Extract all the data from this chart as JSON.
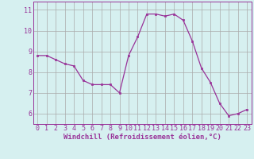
{
  "x": [
    0,
    1,
    2,
    3,
    4,
    5,
    6,
    7,
    8,
    9,
    10,
    11,
    12,
    13,
    14,
    15,
    16,
    17,
    18,
    19,
    20,
    21,
    22,
    23
  ],
  "y": [
    8.8,
    8.8,
    8.6,
    8.4,
    8.3,
    7.6,
    7.4,
    7.4,
    7.4,
    7.0,
    8.8,
    9.7,
    10.8,
    10.8,
    10.7,
    10.8,
    10.5,
    9.5,
    8.2,
    7.5,
    6.5,
    5.9,
    6.0,
    6.2
  ],
  "line_color": "#993399",
  "marker": "s",
  "marker_size": 2.0,
  "bg_color": "#d6f0f0",
  "grid_color": "#aaaaaa",
  "xlabel": "Windchill (Refroidissement éolien,°C)",
  "xlabel_fontsize": 6.5,
  "ylabel_ticks": [
    6,
    7,
    8,
    9,
    10,
    11
  ],
  "xtick_labels": [
    "0",
    "1",
    "2",
    "3",
    "4",
    "5",
    "6",
    "7",
    "8",
    "9",
    "10",
    "11",
    "12",
    "13",
    "14",
    "15",
    "16",
    "17",
    "18",
    "19",
    "20",
    "21",
    "22",
    "23"
  ],
  "ylim": [
    5.5,
    11.4
  ],
  "xlim": [
    -0.5,
    23.5
  ],
  "tick_fontsize": 6.0,
  "tick_color": "#993399",
  "axis_color": "#993399"
}
